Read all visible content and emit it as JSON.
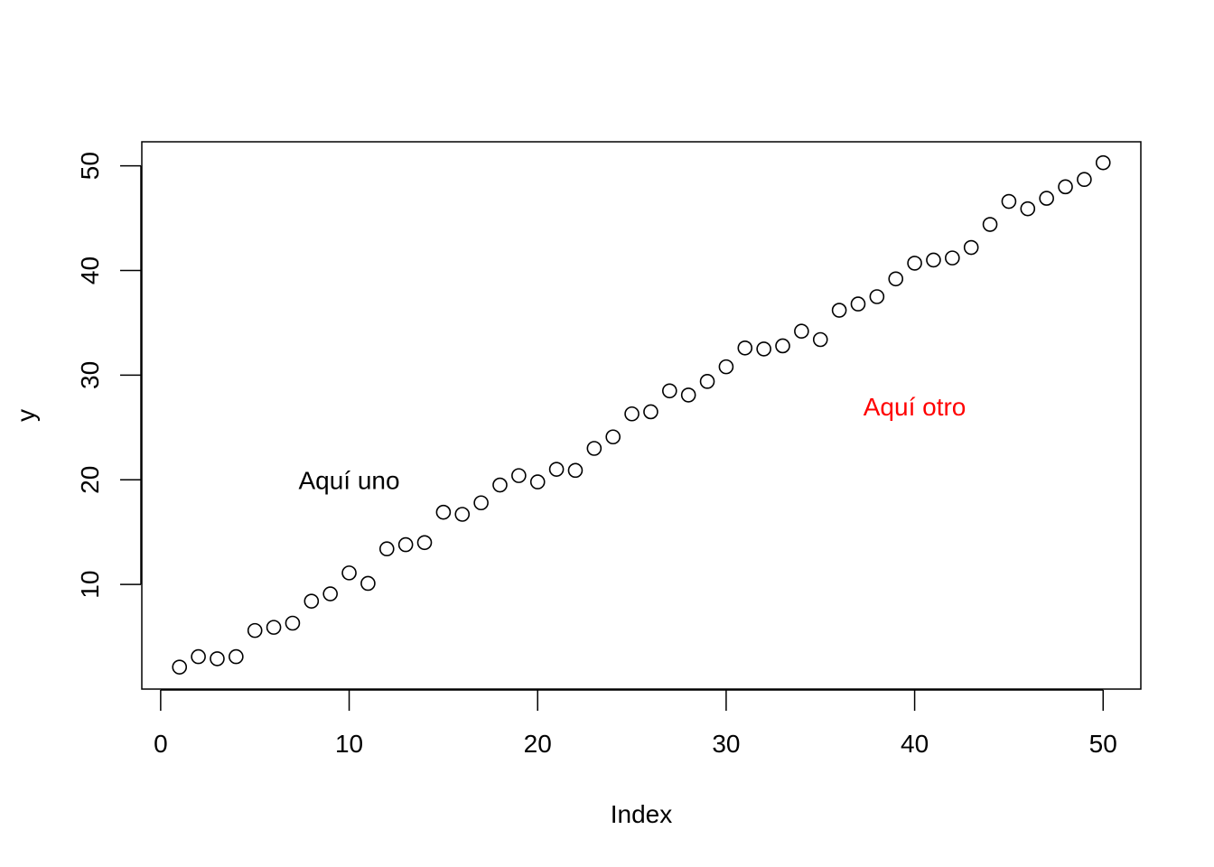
{
  "chart_data": {
    "type": "scatter",
    "title": "",
    "xlabel": "Index",
    "ylabel": "y",
    "xlim": [
      -1,
      52
    ],
    "ylim": [
      0,
      52.3
    ],
    "x_ticks": [
      0,
      10,
      20,
      30,
      40,
      50
    ],
    "y_ticks": [
      10,
      20,
      30,
      40,
      50
    ],
    "grid": false,
    "legend": "none",
    "point_style": "open-circle",
    "point_color": "#000000",
    "x": [
      1,
      2,
      3,
      4,
      5,
      6,
      7,
      8,
      9,
      10,
      11,
      12,
      13,
      14,
      15,
      16,
      17,
      18,
      19,
      20,
      21,
      22,
      23,
      24,
      25,
      26,
      27,
      28,
      29,
      30,
      31,
      32,
      33,
      34,
      35,
      36,
      37,
      38,
      39,
      40,
      41,
      42,
      43,
      44,
      45,
      46,
      47,
      48,
      49,
      50
    ],
    "values": [
      2.1,
      3.1,
      2.9,
      3.1,
      5.6,
      5.9,
      6.3,
      8.4,
      9.1,
      11.1,
      10.1,
      13.4,
      13.8,
      14.0,
      16.9,
      16.7,
      17.8,
      19.5,
      20.4,
      19.8,
      21.0,
      20.9,
      23.0,
      24.1,
      26.3,
      26.5,
      28.5,
      28.1,
      29.4,
      30.8,
      32.6,
      32.5,
      32.8,
      34.2,
      33.4,
      36.2,
      36.8,
      37.5,
      39.2,
      40.7,
      41.0,
      41.2,
      42.2,
      44.4,
      46.6,
      45.9,
      46.9,
      48.0,
      48.7,
      50.3
    ],
    "annotations": [
      {
        "text": "Aquí uno",
        "x": 10,
        "y": 20,
        "color": "#000000"
      },
      {
        "text": "Aquí otro",
        "x": 40,
        "y": 27,
        "color": "#ff0000"
      }
    ]
  }
}
